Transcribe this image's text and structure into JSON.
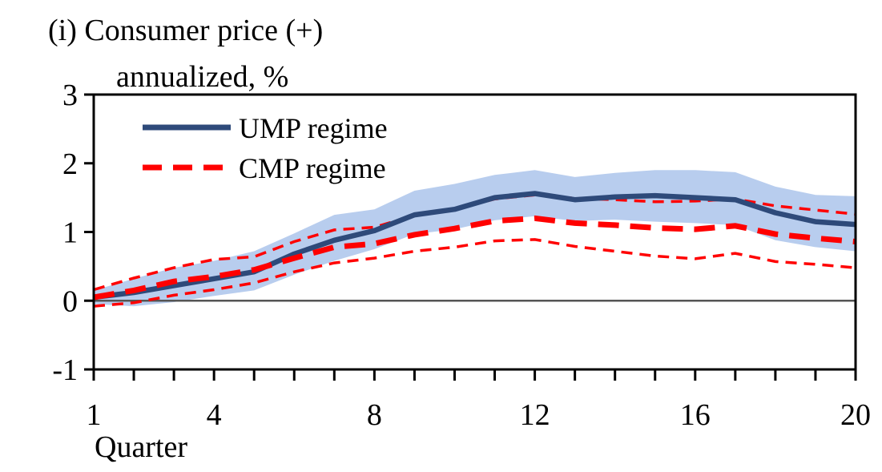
{
  "panel_title": "(i) Consumer price (+)",
  "unit_label": "annualized, %",
  "chart_data": {
    "type": "line",
    "xlabel": "Quarter",
    "ylabel": "annualized, %",
    "x": [
      1,
      2,
      3,
      4,
      5,
      6,
      7,
      8,
      9,
      10,
      11,
      12,
      13,
      14,
      15,
      16,
      17,
      18,
      19,
      20
    ],
    "xlim": [
      1,
      20
    ],
    "ylim": [
      -1,
      3
    ],
    "xticks_labeled": [
      1,
      4,
      8,
      12,
      16,
      20
    ],
    "yticks": [
      -1,
      0,
      1,
      2,
      3
    ],
    "grid": false,
    "legend_position": "top-left",
    "series": [
      {
        "name": "UMP regime",
        "style": "solid",
        "color": "#2e4a7a",
        "values": [
          0.05,
          0.12,
          0.22,
          0.32,
          0.42,
          0.68,
          0.88,
          1.02,
          1.25,
          1.33,
          1.5,
          1.56,
          1.47,
          1.51,
          1.53,
          1.5,
          1.47,
          1.28,
          1.15,
          1.11
        ]
      },
      {
        "name": "CMP regime",
        "style": "dashed",
        "color": "#ff0000",
        "values": [
          0.05,
          0.15,
          0.28,
          0.35,
          0.45,
          0.62,
          0.78,
          0.83,
          0.96,
          1.05,
          1.16,
          1.2,
          1.13,
          1.1,
          1.06,
          1.04,
          1.09,
          0.97,
          0.91,
          0.86
        ]
      }
    ],
    "ump_band": {
      "color": "#b8cdee",
      "lower": [
        -0.05,
        -0.08,
        -0.02,
        0.07,
        0.15,
        0.38,
        0.58,
        0.75,
        0.97,
        1.04,
        1.17,
        1.23,
        1.16,
        1.18,
        1.15,
        1.13,
        1.1,
        0.88,
        0.78,
        0.72
      ],
      "upper": [
        0.15,
        0.32,
        0.48,
        0.58,
        0.72,
        0.98,
        1.25,
        1.33,
        1.6,
        1.7,
        1.83,
        1.9,
        1.8,
        1.86,
        1.9,
        1.9,
        1.87,
        1.66,
        1.54,
        1.52
      ]
    },
    "cmp_band": {
      "color": "#ff0000",
      "lower": [
        -0.08,
        -0.03,
        0.08,
        0.16,
        0.26,
        0.42,
        0.55,
        0.62,
        0.72,
        0.78,
        0.87,
        0.89,
        0.79,
        0.72,
        0.65,
        0.61,
        0.69,
        0.57,
        0.53,
        0.48
      ],
      "upper": [
        0.16,
        0.33,
        0.48,
        0.6,
        0.64,
        0.86,
        1.03,
        1.07,
        1.24,
        1.33,
        1.48,
        1.54,
        1.49,
        1.47,
        1.44,
        1.45,
        1.48,
        1.38,
        1.32,
        1.26
      ]
    }
  }
}
